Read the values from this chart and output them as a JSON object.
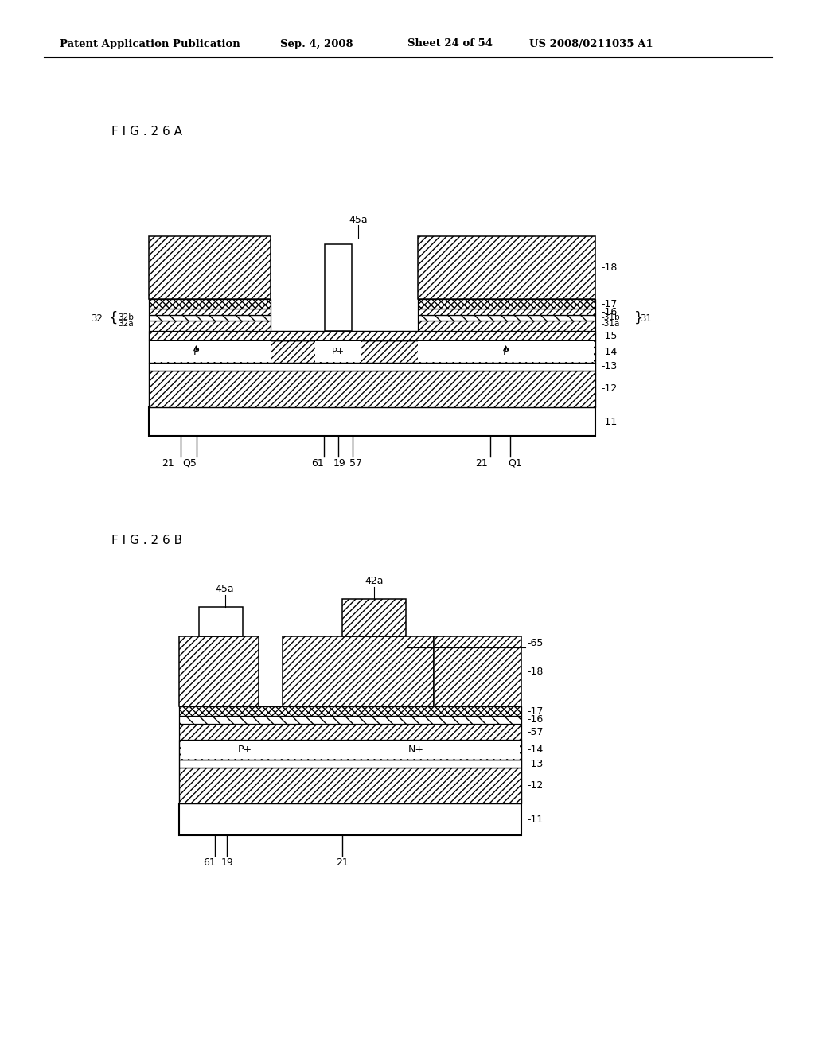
{
  "header": "Patent Application Publication",
  "date": "Sep. 4, 2008",
  "sheet": "Sheet 24 of 54",
  "patent_num": "US 2008/0211035 A1",
  "fig_a": "F I G . 2 6 A",
  "fig_b": "F I G . 2 6 B"
}
